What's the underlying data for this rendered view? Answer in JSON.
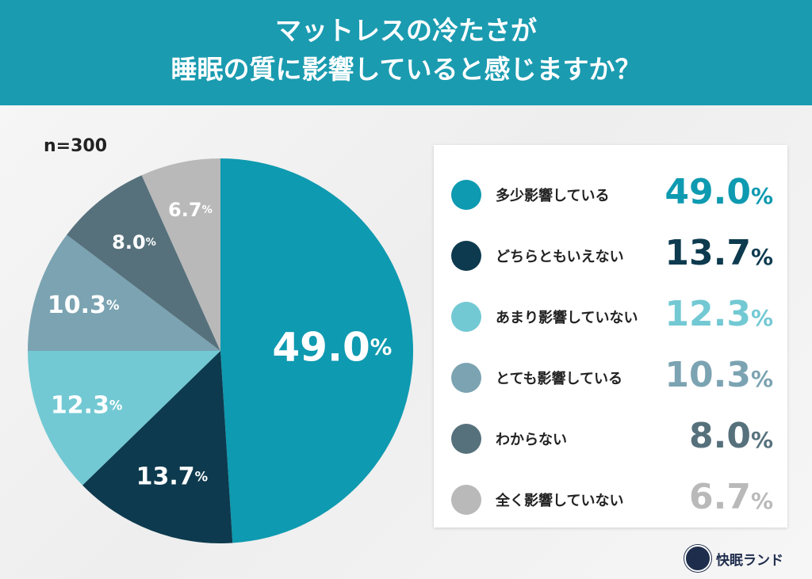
{
  "header": {
    "line1": "マットレスの冷たさが",
    "line2": "睡眠の質に影響していると感じますか？"
  },
  "sample": "n=300",
  "unit": "%",
  "brand": "快眠ランド",
  "chart_data": {
    "type": "pie",
    "title": "マットレスの冷たさが睡眠の質に影響していると感じますか？",
    "n": 300,
    "start": "top",
    "direction": "clockwise",
    "legend_placement": "right",
    "slices": [
      {
        "label": "多少影響している",
        "value": 49.0,
        "display": "49.0",
        "color": "#0e9ab0",
        "text_color": "#ffffff"
      },
      {
        "label": "どちらともいえない",
        "value": 13.7,
        "display": "13.7",
        "color": "#0d3a4e",
        "text_color": "#ffffff"
      },
      {
        "label": "あまり影響していない",
        "value": 12.3,
        "display": "12.3",
        "color": "#72c9d3",
        "text_color": "#ffffff"
      },
      {
        "label": "とても影響している",
        "value": 10.3,
        "display": "10.3",
        "color": "#7ba3b2",
        "text_color": "#ffffff"
      },
      {
        "label": "わからない",
        "value": 8.0,
        "display": "8.0",
        "color": "#56717c",
        "text_color": "#ffffff"
      },
      {
        "label": "全く影響していない",
        "value": 6.7,
        "display": "6.7",
        "color": "#b9b9b9",
        "text_color": "#ffffff"
      }
    ]
  }
}
